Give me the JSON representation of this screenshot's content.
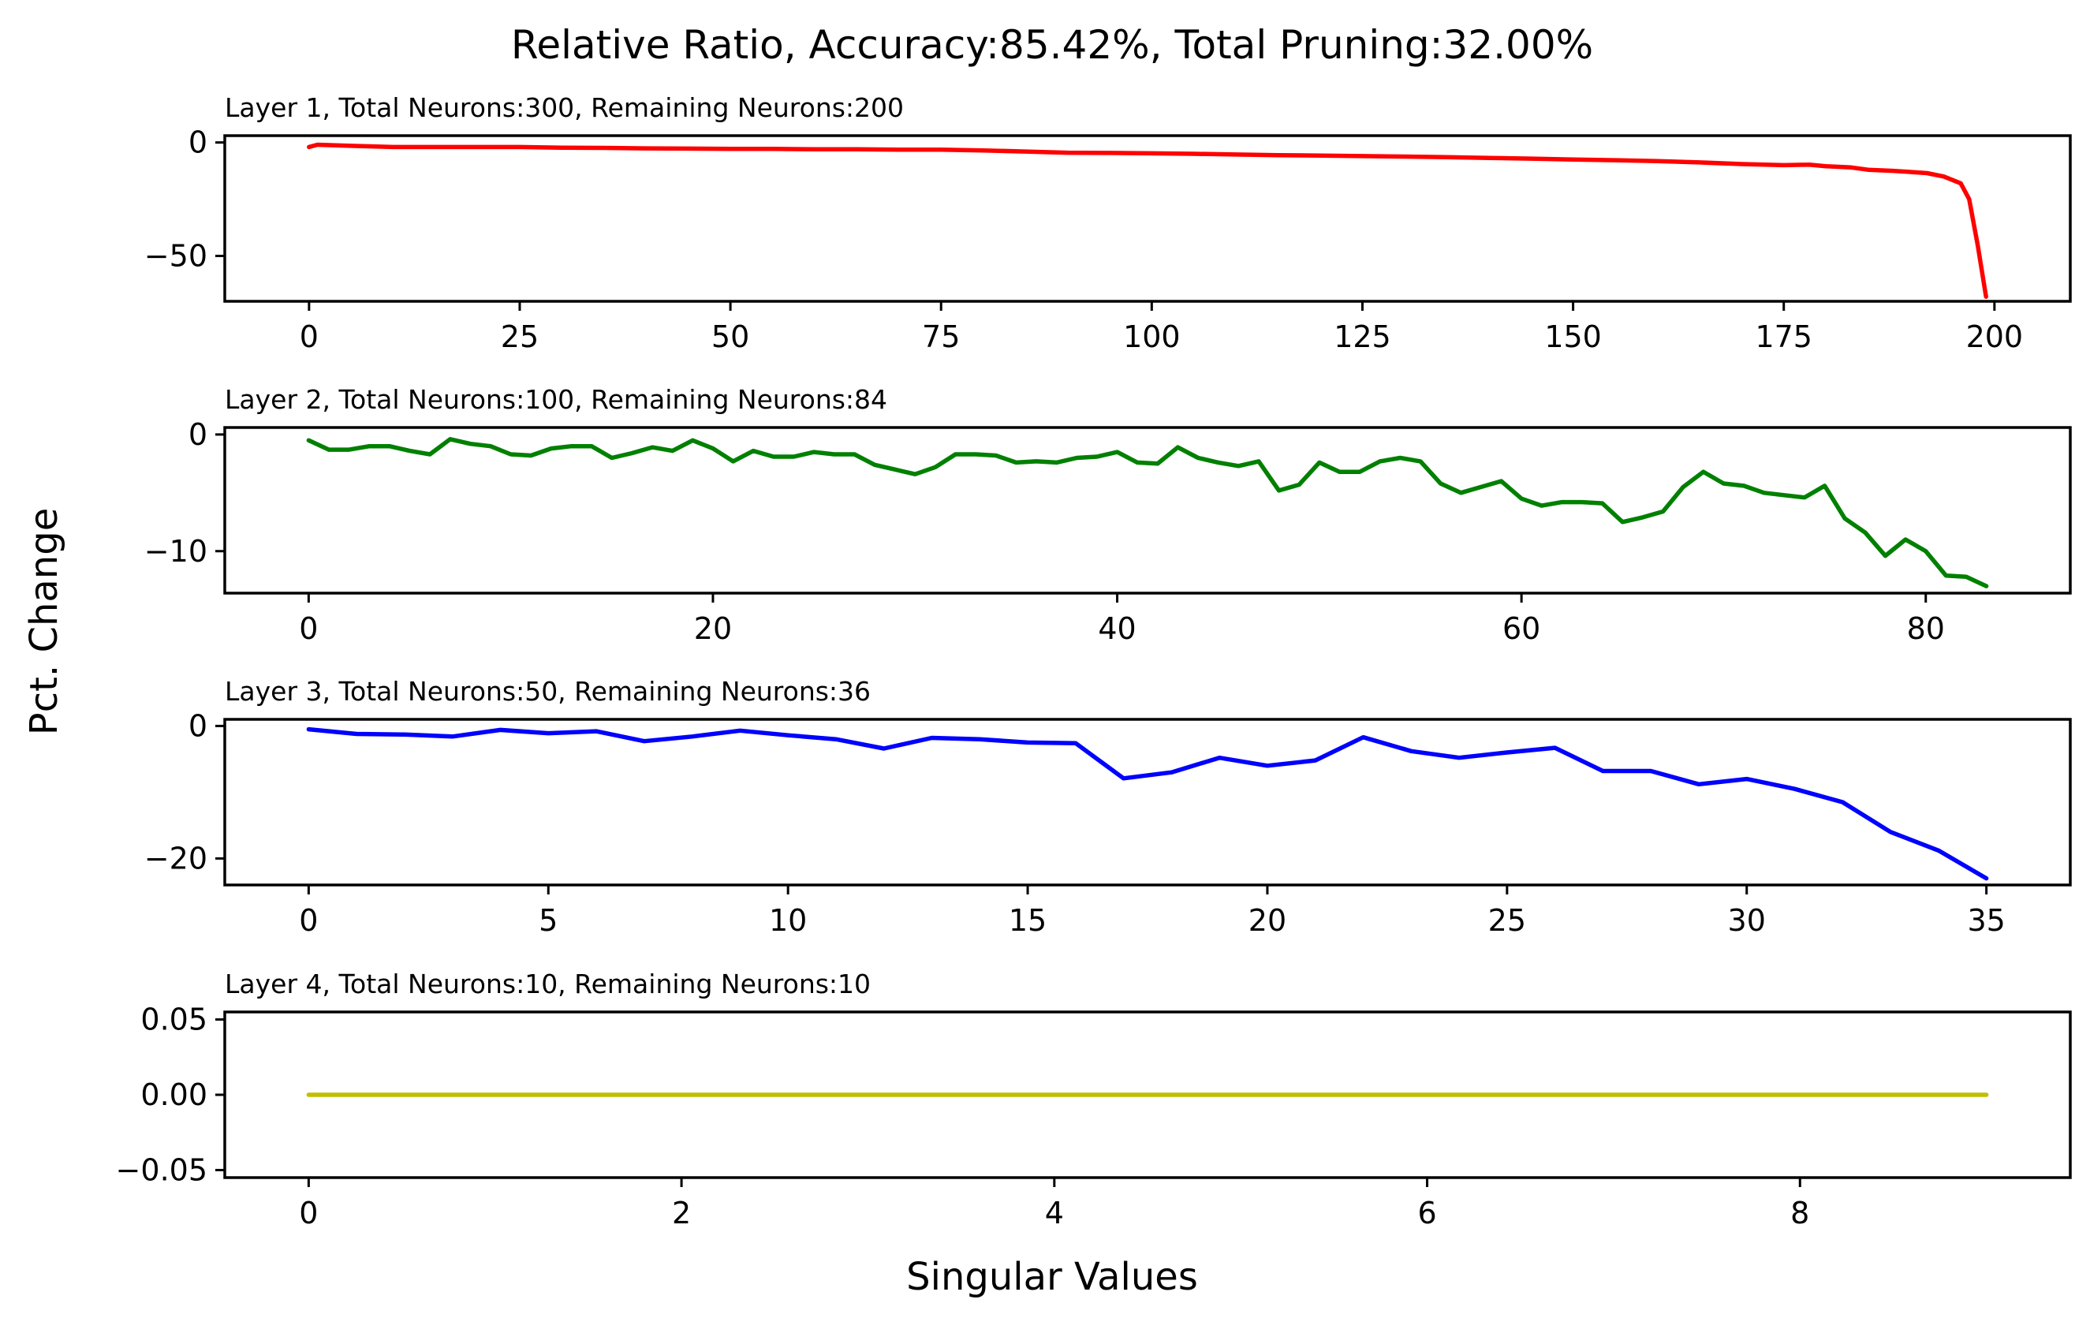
{
  "chart_data": {
    "title": "Relative Ratio, Accuracy:85.42%, Total Pruning:32.00%",
    "xlabel": "Singular Values",
    "ylabel": "Pct. Change",
    "type": "line",
    "subplots": [
      {
        "title": "Layer 1, Total Neurons:300, Remaining Neurons:200",
        "color": "#ff0000",
        "xlim": [
          -10,
          209
        ],
        "ylim": [
          -70,
          3
        ],
        "xticks": [
          0,
          25,
          50,
          75,
          100,
          125,
          150,
          175,
          200
        ],
        "xtick_labels": [
          "0",
          "25",
          "50",
          "75",
          "100",
          "125",
          "150",
          "175",
          "200"
        ],
        "yticks": [
          0,
          -50
        ],
        "ytick_labels": [
          "0",
          "−50"
        ],
        "x": [
          0,
          1,
          5,
          10,
          15,
          20,
          25,
          30,
          35,
          40,
          45,
          50,
          55,
          60,
          65,
          70,
          75,
          80,
          85,
          90,
          95,
          100,
          105,
          110,
          115,
          120,
          125,
          130,
          135,
          140,
          145,
          150,
          155,
          160,
          165,
          170,
          175,
          178,
          180,
          183,
          185,
          188,
          190,
          192,
          194,
          196,
          197,
          198,
          199
        ],
        "y": [
          -2,
          -1,
          -1.5,
          -2,
          -2,
          -2,
          -2,
          -2.3,
          -2.4,
          -2.6,
          -2.7,
          -2.8,
          -2.8,
          -3.0,
          -3.0,
          -3.2,
          -3.2,
          -3.5,
          -4.0,
          -4.5,
          -4.6,
          -4.8,
          -5.0,
          -5.3,
          -5.6,
          -5.8,
          -6.0,
          -6.2,
          -6.5,
          -6.8,
          -7.1,
          -7.5,
          -7.8,
          -8.2,
          -8.8,
          -9.5,
          -10,
          -9.8,
          -10.5,
          -11,
          -12,
          -12.5,
          -13,
          -13.5,
          -15,
          -18,
          -25,
          -45,
          -68
        ]
      },
      {
        "title": "Layer 2, Total Neurons:100, Remaining Neurons:84",
        "color": "#008000",
        "xlim": [
          -4.15,
          87.15
        ],
        "ylim": [
          -13.6,
          0.6
        ],
        "xticks": [
          0,
          20,
          40,
          60,
          80
        ],
        "xtick_labels": [
          "0",
          "20",
          "40",
          "60",
          "80"
        ],
        "yticks": [
          0,
          -10
        ],
        "ytick_labels": [
          "0",
          "−10"
        ],
        "x": [
          0,
          1,
          2,
          3,
          4,
          5,
          6,
          7,
          8,
          9,
          10,
          11,
          12,
          13,
          14,
          15,
          16,
          17,
          18,
          19,
          20,
          21,
          22,
          23,
          24,
          25,
          26,
          27,
          28,
          29,
          30,
          31,
          32,
          33,
          34,
          35,
          36,
          37,
          38,
          39,
          40,
          41,
          42,
          43,
          44,
          45,
          46,
          47,
          48,
          49,
          50,
          51,
          52,
          53,
          54,
          55,
          56,
          57,
          58,
          59,
          60,
          61,
          62,
          63,
          64,
          65,
          66,
          67,
          68,
          69,
          70,
          71,
          72,
          73,
          74,
          75,
          76,
          77,
          78,
          79,
          80,
          81,
          82,
          83
        ],
        "y": [
          -0.5,
          -1.3,
          -1.3,
          -1.0,
          -1.0,
          -1.4,
          -1.7,
          -0.4,
          -0.8,
          -1.0,
          -1.7,
          -1.8,
          -1.2,
          -1.0,
          -1.0,
          -2.0,
          -1.6,
          -1.1,
          -1.4,
          -0.5,
          -1.2,
          -2.3,
          -1.4,
          -1.9,
          -1.9,
          -1.5,
          -1.7,
          -1.7,
          -2.6,
          -3.0,
          -3.4,
          -2.8,
          -1.7,
          -1.7,
          -1.8,
          -2.4,
          -2.3,
          -2.4,
          -2.0,
          -1.9,
          -1.5,
          -2.4,
          -2.5,
          -1.1,
          -2.0,
          -2.4,
          -2.7,
          -2.3,
          -4.8,
          -4.3,
          -2.4,
          -3.2,
          -3.2,
          -2.3,
          -2.0,
          -2.3,
          -4.2,
          -5.0,
          -4.5,
          -4.0,
          -5.5,
          -6.1,
          -5.8,
          -5.8,
          -5.9,
          -7.5,
          -7.1,
          -6.6,
          -4.5,
          -3.2,
          -4.2,
          -4.4,
          -5.0,
          -5.2,
          -5.4,
          -4.4,
          -7.2,
          -8.4,
          -10.4,
          -9.0,
          -10.0,
          -12.1,
          -12.2,
          -13.0
        ]
      },
      {
        "title": "Layer 3, Total Neurons:50, Remaining Neurons:36",
        "color": "#0000ff",
        "xlim": [
          -1.75,
          36.75
        ],
        "ylim": [
          -24,
          1
        ],
        "xticks": [
          0,
          5,
          10,
          15,
          20,
          25,
          30,
          35
        ],
        "xtick_labels": [
          "0",
          "5",
          "10",
          "15",
          "20",
          "25",
          "30",
          "35"
        ],
        "yticks": [
          0,
          -20
        ],
        "ytick_labels": [
          "0",
          "−20"
        ],
        "x": [
          0,
          1,
          2,
          3,
          4,
          5,
          6,
          7,
          8,
          9,
          10,
          11,
          12,
          13,
          14,
          15,
          16,
          17,
          18,
          19,
          20,
          21,
          22,
          23,
          24,
          25,
          26,
          27,
          28,
          29,
          30,
          31,
          32,
          33,
          34,
          35
        ],
        "y": [
          -0.5,
          -1.2,
          -1.3,
          -1.6,
          -0.6,
          -1.1,
          -0.8,
          -2.3,
          -1.6,
          -0.7,
          -1.4,
          -2.0,
          -3.4,
          -1.8,
          -2.0,
          -2.5,
          -2.6,
          -7.9,
          -7.0,
          -4.8,
          -6.0,
          -5.2,
          -1.7,
          -3.8,
          -4.8,
          -4.0,
          -3.3,
          -6.8,
          -6.8,
          -8.8,
          -8.0,
          -9.5,
          -11.5,
          -16.0,
          -18.8,
          -23.0
        ]
      },
      {
        "title": "Layer 4, Total Neurons:10, Remaining Neurons:10",
        "color": "#bfbf00",
        "xlim": [
          -0.45,
          9.45
        ],
        "ylim": [
          -0.055,
          0.055
        ],
        "xticks": [
          0,
          2,
          4,
          6,
          8
        ],
        "xtick_labels": [
          "0",
          "2",
          "4",
          "6",
          "8"
        ],
        "yticks": [
          0.05,
          0.0,
          -0.05
        ],
        "ytick_labels": [
          "0.05",
          "0.00",
          "−0.05"
        ],
        "x": [
          0,
          1,
          2,
          3,
          4,
          5,
          6,
          7,
          8,
          9
        ],
        "y": [
          0,
          0,
          0,
          0,
          0,
          0,
          0,
          0,
          0,
          0
        ]
      }
    ]
  }
}
